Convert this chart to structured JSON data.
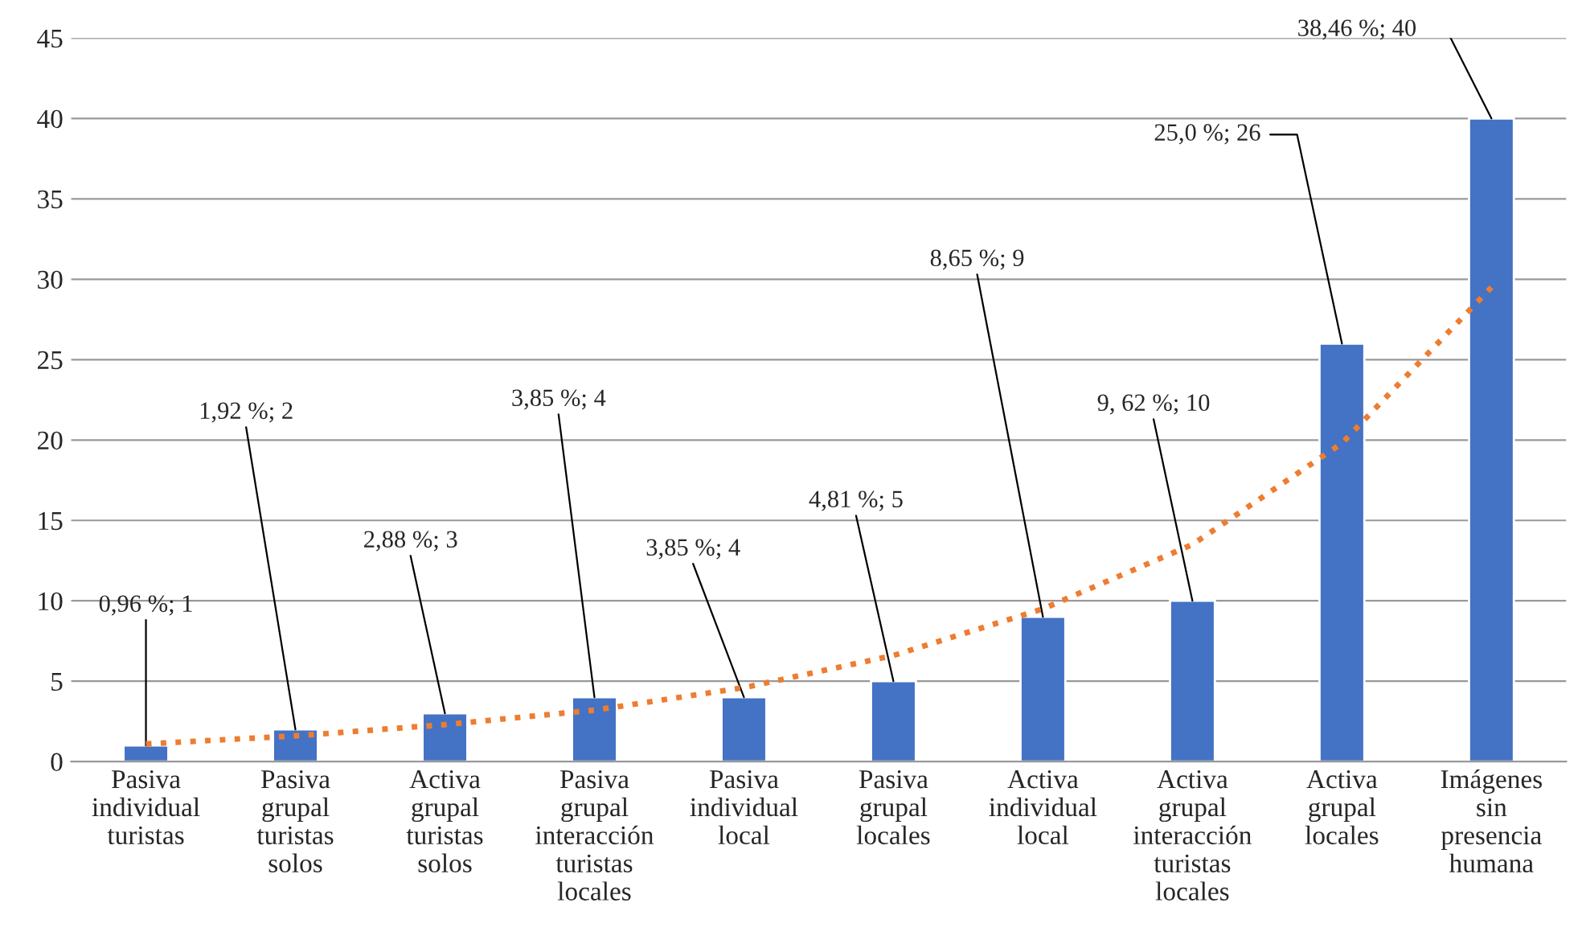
{
  "chart_data": {
    "type": "bar",
    "categories": [
      "Pasiva individual turistas",
      "Pasiva grupal turistas solos",
      "Activa grupal turistas solos",
      "Pasiva grupal interacción turistas locales",
      "Pasiva individual local",
      "Pasiva grupal locales",
      "Activa individual local",
      "Activa grupal interacción turistas locales",
      "Activa grupal locales",
      "Imágenes sin presencia humana"
    ],
    "series": [
      {
        "color": "#4472c4",
        "values": [
          1,
          2,
          3,
          4,
          4,
          5,
          9,
          10,
          26,
          40
        ],
        "value_labels": [
          "0,96 %; 1",
          "1,92 %; 2",
          "2,88 %; 3",
          "3,85 %; 4",
          "3,85 %; 4",
          "4,81 %; 5",
          "8,65 %; 9",
          "9, 62 %; 10",
          "25,0 %; 26",
          "38,46 %; 40"
        ]
      },
      {
        "type": "line",
        "color": "#ed7d31",
        "line_style": "dotted",
        "marker": "none",
        "values": [
          1.1,
          1.6,
          2.3,
          3.2,
          4.6,
          6.6,
          9.5,
          13.5,
          19.8,
          29.5
        ]
      }
    ],
    "ylim": [
      0,
      45
    ],
    "yticks": [
      0,
      5,
      10,
      15,
      20,
      25,
      30,
      35,
      40,
      45
    ],
    "grid": "y"
  }
}
